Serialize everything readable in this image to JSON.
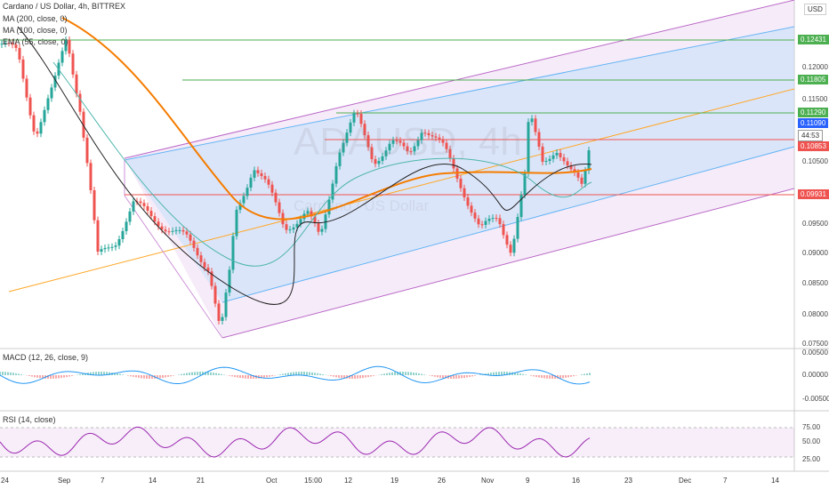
{
  "header": {
    "title": "Cardano / US Dollar, 4h, BITTREX",
    "indicators": [
      "MA (200, close, 0)",
      "MA (100, close, 0)",
      "EMA (55, close, 0)"
    ],
    "currency": "USD"
  },
  "watermark": {
    "symbol": "ADAUSD, 4h",
    "name": "Cardano / US Dollar"
  },
  "price_axis": [
    "0.12000",
    "0.11500",
    "0.10500",
    "0.09500",
    "0.09000",
    "0.08500",
    "0.08000",
    "0.07500"
  ],
  "level_labels": [
    "0.12431",
    "0.11805",
    "0.11290",
    "0.11090",
    "0.10853",
    "0.09931"
  ],
  "countdown": "44:53",
  "macd": {
    "title": "MACD (12, 26, close, 9)",
    "axis": [
      "0.00500",
      "0.00000",
      "-0.00500"
    ]
  },
  "rsi": {
    "title": "RSI (14, close)",
    "axis": [
      "75.00",
      "50.00",
      "25.00"
    ]
  },
  "time_axis": [
    "24",
    "Sep",
    "7",
    "14",
    "21",
    "Oct",
    "15:00",
    "12",
    "19",
    "26",
    "Nov",
    "9",
    "16",
    "23",
    "Dec",
    "7",
    "14"
  ]
}
